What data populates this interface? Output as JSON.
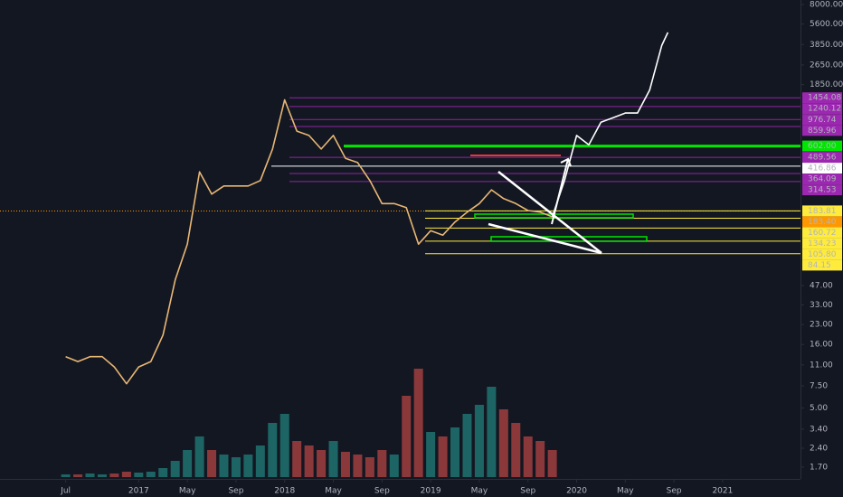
{
  "chart_data": {
    "type": "line",
    "log_scale": true,
    "xlim": [
      -5.4,
      60.4
    ],
    "ylim": [
      1.26,
      8690
    ],
    "xticks": [
      {
        "value": 0,
        "label": "Jul"
      },
      {
        "value": 6,
        "label": "2017"
      },
      {
        "value": 10,
        "label": "May"
      },
      {
        "value": 14,
        "label": "Sep"
      },
      {
        "value": 18,
        "label": "2018"
      },
      {
        "value": 22,
        "label": "May"
      },
      {
        "value": 26,
        "label": "Sep"
      },
      {
        "value": 30,
        "label": "2019"
      },
      {
        "value": 34,
        "label": "May"
      },
      {
        "value": 38,
        "label": "Sep"
      },
      {
        "value": 42,
        "label": "2020"
      },
      {
        "value": 46,
        "label": "May"
      },
      {
        "value": 50,
        "label": "Sep"
      },
      {
        "value": 54,
        "label": "2021"
      }
    ],
    "yticks": [
      {
        "value": 8000,
        "label": "8000.00"
      },
      {
        "value": 5600,
        "label": "5600.00"
      },
      {
        "value": 3850,
        "label": "3850.00"
      },
      {
        "value": 2650,
        "label": "2650.00"
      },
      {
        "value": 1850,
        "label": "1850.00"
      },
      {
        "value": 47,
        "label": "47.00"
      },
      {
        "value": 33,
        "label": "33.00"
      },
      {
        "value": 23,
        "label": "23.00"
      },
      {
        "value": 16,
        "label": "16.00"
      },
      {
        "value": 11,
        "label": "11.00"
      },
      {
        "value": 7.5,
        "label": "7.50"
      },
      {
        "value": 5,
        "label": "5.00"
      },
      {
        "value": 3.4,
        "label": "3.40"
      },
      {
        "value": 2.4,
        "label": "2.40"
      },
      {
        "value": 1.7,
        "label": "1.70"
      }
    ],
    "x": [
      0,
      1,
      2,
      3,
      4,
      5,
      6,
      7,
      8,
      9,
      10,
      11,
      12,
      13,
      14,
      15,
      16,
      17,
      18,
      19,
      20,
      21,
      22,
      23,
      24,
      25,
      26,
      27,
      28,
      29,
      30,
      31,
      32,
      33,
      34,
      35,
      36,
      37,
      38,
      39,
      40,
      41,
      42,
      43,
      44,
      45,
      46,
      47,
      48,
      49,
      49.5
    ],
    "series": [
      {
        "color": "#e8b774",
        "values": [
          12.8,
          11.7,
          12.8,
          12.8,
          10.6,
          7.8,
          10.6,
          11.7,
          19,
          52,
          100,
          375,
          250,
          290,
          290,
          290,
          320,
          570,
          1400,
          790,
          730,
          570,
          730,
          480,
          445,
          320,
          210,
          210,
          195,
          100,
          128,
          118,
          150,
          180,
          210,
          270,
          230,
          210,
          185,
          180,
          165,
          null,
          null,
          null,
          null,
          null,
          null,
          null,
          null,
          null,
          null
        ]
      },
      {
        "color": "#ffffff",
        "values": [
          null,
          null,
          null,
          null,
          null,
          null,
          null,
          null,
          null,
          null,
          null,
          null,
          null,
          null,
          null,
          null,
          null,
          null,
          null,
          null,
          null,
          null,
          null,
          null,
          null,
          null,
          null,
          null,
          null,
          null,
          null,
          null,
          null,
          null,
          null,
          null,
          null,
          null,
          null,
          null,
          165,
          320,
          730,
          615,
          930,
          1010,
          1100,
          1100,
          1670,
          3800,
          4800
        ]
      }
    ],
    "volume": [
      3,
      3,
      4,
      3,
      4,
      6,
      5,
      6,
      10,
      18,
      30,
      45,
      30,
      25,
      22,
      25,
      35,
      60,
      70,
      40,
      35,
      30,
      40,
      28,
      25,
      22,
      30,
      25,
      90,
      120,
      50,
      45,
      55,
      70,
      80,
      100,
      75,
      60,
      45,
      40,
      30,
      null,
      null,
      null,
      null,
      null,
      null,
      null,
      null,
      null,
      null
    ],
    "volume_lim": [
      0,
      140
    ],
    "volume_colors": {
      "up": "#26a69a",
      "down": "#ef5350"
    },
    "levels": [
      {
        "value": 1454.08,
        "label": "1454.08",
        "color": "#9c27b0"
      },
      {
        "value": 1240.12,
        "label": "1240.12",
        "color": "#9c27b0"
      },
      {
        "value": 976.74,
        "label": "976.74",
        "color": "#9c27b0"
      },
      {
        "value": 859.96,
        "label": "859.96",
        "color": "#9c27b0"
      },
      {
        "value": 602,
        "label": "602.00",
        "color": "#00e600"
      },
      {
        "value": 489.56,
        "label": "489.56",
        "color": "#9c27b0"
      },
      {
        "value": 416.86,
        "label": "416.86",
        "color": "#ffffff"
      },
      {
        "value": 364.09,
        "label": "364.09",
        "color": "#9c27b0"
      },
      {
        "value": 314.53,
        "label": "314.53",
        "color": "#9c27b0"
      },
      {
        "value": 183.4,
        "label": "183.40",
        "color": "#ff9800",
        "dotted": true
      },
      {
        "value": 183.81,
        "label": "183.81",
        "color": "#ffeb3b"
      },
      {
        "value": 160.72,
        "label": "160.72",
        "color": "#ffeb3b"
      },
      {
        "value": 134.23,
        "label": "134.23",
        "color": "#ffeb3b"
      },
      {
        "value": 105.8,
        "label": "105.80",
        "color": "#ffeb3b"
      },
      {
        "value": 84.15,
        "label": "84.15",
        "color": "#ffeb3b"
      }
    ]
  }
}
